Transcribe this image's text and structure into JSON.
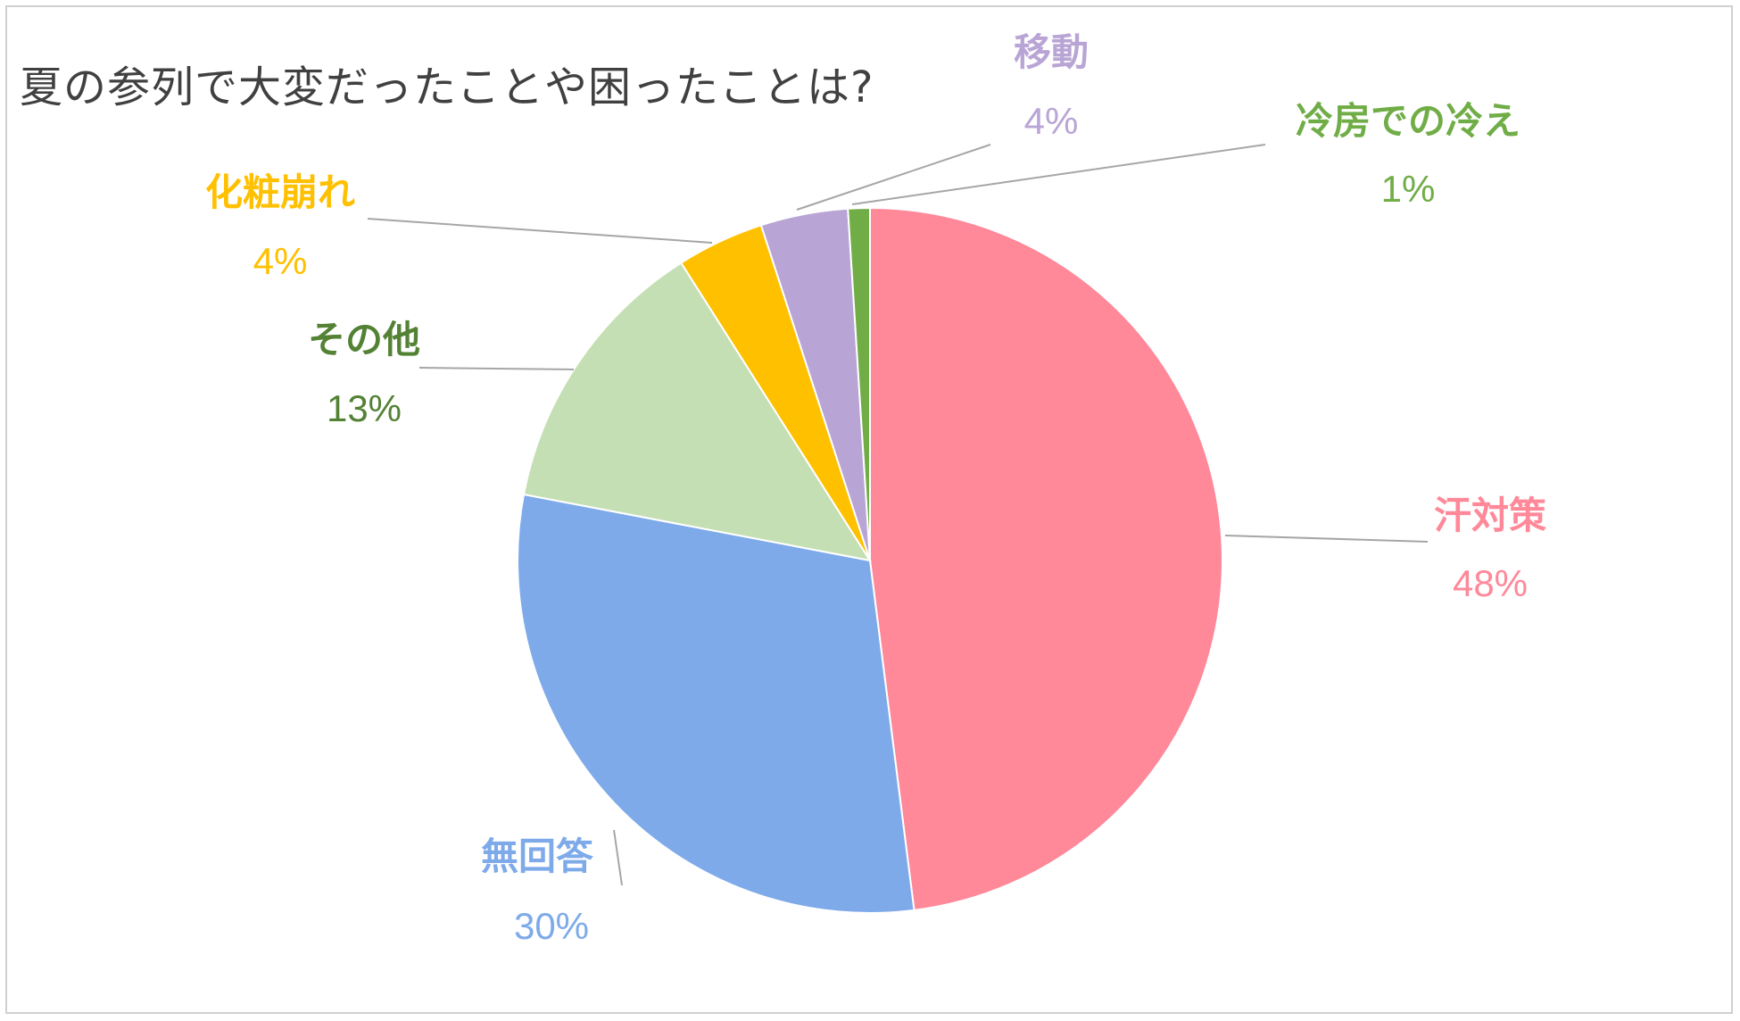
{
  "chart_data": {
    "type": "pie",
    "title": "夏の参列で大変だったことや困ったことは?",
    "slices": [
      {
        "label": "汗対策",
        "value": 48,
        "percent_label": "48%",
        "color": "#ff8899",
        "label_color": "#ff8899"
      },
      {
        "label": "無回答",
        "value": 30,
        "percent_label": "30%",
        "color": "#7eaaea",
        "label_color": "#7eaaea"
      },
      {
        "label": "その他",
        "value": 13,
        "percent_label": "13%",
        "color": "#c5dfb4",
        "label_color": "#548235"
      },
      {
        "label": "化粧崩れ",
        "value": 4,
        "percent_label": "4%",
        "color": "#ffc000",
        "label_color": "#ffc000"
      },
      {
        "label": "移動",
        "value": 4,
        "percent_label": "4%",
        "color": "#b9a5d5",
        "label_color": "#b9a5d5"
      },
      {
        "label": "冷房での冷え",
        "value": 1,
        "percent_label": "1%",
        "color": "#70ad47",
        "label_color": "#70ad47"
      }
    ],
    "start_angle_deg": 0,
    "direction": "clockwise",
    "legend": "none",
    "leader_line_color": "#a6a6a6"
  }
}
